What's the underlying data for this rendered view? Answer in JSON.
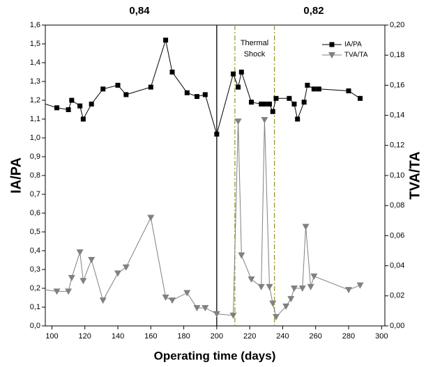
{
  "chart_data": {
    "type": "line",
    "x_label": "Operating time (days)",
    "y_label": "IA/PA",
    "y2_label": "TVA/TA",
    "xlim": [
      96,
      302
    ],
    "xticks": [
      100,
      120,
      140,
      160,
      180,
      200,
      220,
      240,
      260,
      280,
      300
    ],
    "ylim": [
      0,
      1.6
    ],
    "yticks": [
      {
        "value": 0,
        "label": "0,0"
      },
      {
        "value": 0.1,
        "label": "0,1"
      },
      {
        "value": 0.2,
        "label": "0,2"
      },
      {
        "value": 0.3,
        "label": "0,3"
      },
      {
        "value": 0.4,
        "label": "0,4"
      },
      {
        "value": 0.5,
        "label": "0,5"
      },
      {
        "value": 0.6,
        "label": "0,6"
      },
      {
        "value": 0.7,
        "label": "0,7"
      },
      {
        "value": 0.8,
        "label": "0,8"
      },
      {
        "value": 0.9,
        "label": "0,9"
      },
      {
        "value": 1.0,
        "label": "1,0"
      },
      {
        "value": 1.1,
        "label": "1,1"
      },
      {
        "value": 1.2,
        "label": "1,2"
      },
      {
        "value": 1.3,
        "label": "1,3"
      },
      {
        "value": 1.4,
        "label": "1,4"
      },
      {
        "value": 1.5,
        "label": "1,5"
      },
      {
        "value": 1.6,
        "label": "1,6"
      }
    ],
    "y2lim": [
      0,
      0.2
    ],
    "y2ticks": [
      {
        "value": 0,
        "label": "0,00"
      },
      {
        "value": 0.02,
        "label": "0,02"
      },
      {
        "value": 0.04,
        "label": "0,04"
      },
      {
        "value": 0.06,
        "label": "0,06"
      },
      {
        "value": 0.08,
        "label": "0,08"
      },
      {
        "value": 0.1,
        "label": "0,10"
      },
      {
        "value": 0.12,
        "label": "0,12"
      },
      {
        "value": 0.14,
        "label": "0,14"
      },
      {
        "value": 0.16,
        "label": "0,16"
      },
      {
        "value": 0.18,
        "label": "0,18"
      },
      {
        "value": 0.2,
        "label": "0,20"
      }
    ],
    "legend": "top-right",
    "series": [
      {
        "name": "IA/PA",
        "color": "#000000",
        "marker": "square",
        "x": [
          96,
          103,
          110,
          112,
          117,
          119,
          124,
          131,
          140,
          145,
          160,
          169,
          173,
          182,
          188,
          193,
          200,
          210,
          213,
          215,
          221,
          227,
          229,
          232,
          234,
          236,
          244,
          247,
          249,
          253,
          255,
          259,
          262,
          280,
          287
        ],
        "values": [
          1.18,
          1.16,
          1.15,
          1.2,
          1.17,
          1.1,
          1.18,
          1.26,
          1.28,
          1.23,
          1.27,
          1.52,
          1.35,
          1.24,
          1.22,
          1.23,
          1.02,
          1.34,
          1.27,
          1.35,
          1.19,
          1.18,
          1.18,
          1.18,
          1.14,
          1.21,
          1.21,
          1.18,
          1.1,
          1.19,
          1.28,
          1.26,
          1.26,
          1.25,
          1.21
        ]
      },
      {
        "name": "TVA/TA",
        "color": "#808080",
        "marker": "triangle-down",
        "axis": "y2",
        "x": [
          96,
          103,
          110,
          112,
          117,
          119,
          124,
          131,
          140,
          145,
          160,
          169,
          173,
          182,
          188,
          193,
          200,
          210,
          213,
          215,
          221,
          227,
          229,
          232,
          234,
          236,
          242,
          245,
          247,
          252,
          254,
          257,
          259,
          280,
          287
        ],
        "values": [
          0.024,
          0.023,
          0.023,
          0.032,
          0.049,
          0.03,
          0.044,
          0.017,
          0.035,
          0.039,
          0.072,
          0.019,
          0.017,
          0.022,
          0.012,
          0.012,
          0.008,
          0.007,
          0.136,
          0.047,
          0.031,
          0.026,
          0.137,
          0.026,
          0.015,
          0.006,
          0.013,
          0.018,
          0.025,
          0.025,
          0.066,
          0.026,
          0.033,
          0.024,
          0.027
        ]
      }
    ],
    "reference_lines": [
      {
        "x": 200,
        "color": "#000000"
      },
      {
        "x": 211,
        "color": "#9a9a2a"
      },
      {
        "x": 235,
        "color": "#9a9a2a"
      }
    ],
    "annotations": [
      "0,84",
      "0,82",
      "Thermal Shock"
    ]
  }
}
